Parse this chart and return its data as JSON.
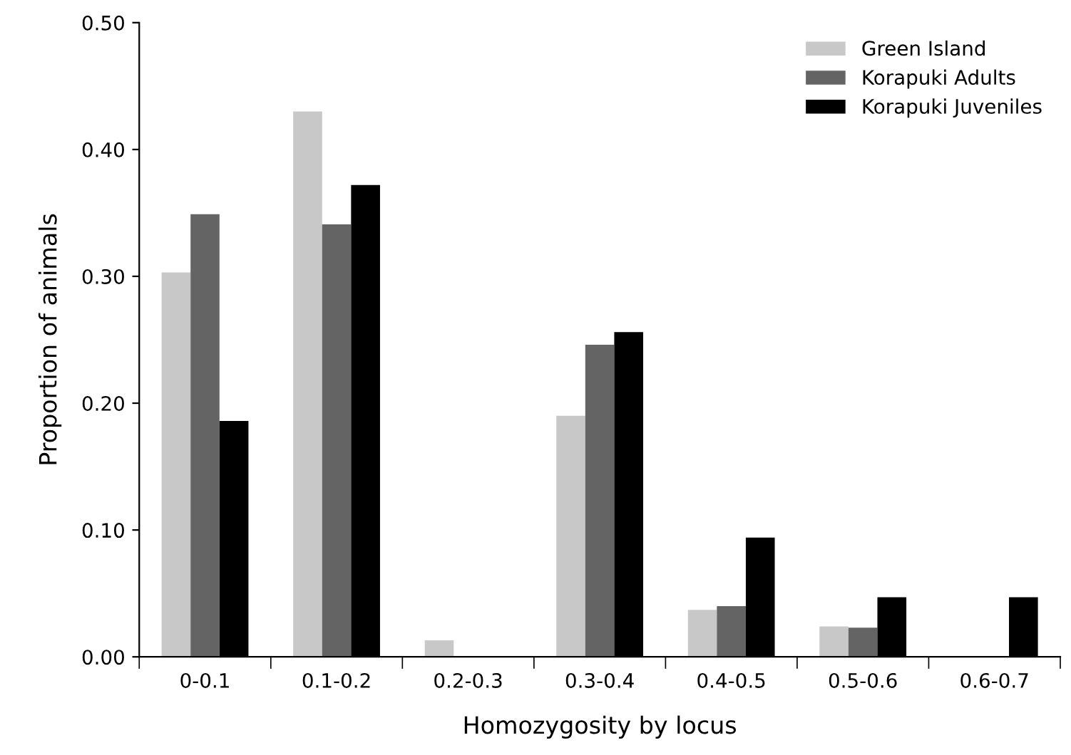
{
  "chart_data": {
    "type": "bar",
    "xlabel": "Homozygosity by locus",
    "ylabel": "Proportion of animals",
    "categories": [
      "0-0.1",
      "0.1-0.2",
      "0.2-0.3",
      "0.3-0.4",
      "0.4-0.5",
      "0.5-0.6",
      "0.6-0.7"
    ],
    "series": [
      {
        "name": "Green Island",
        "color": "#c8c8c8",
        "values": [
          0.303,
          0.43,
          0.013,
          0.19,
          0.037,
          0.024,
          0
        ]
      },
      {
        "name": "Korapuki Adults",
        "color": "#646464",
        "values": [
          0.349,
          0.341,
          0,
          0.246,
          0.04,
          0.023,
          0
        ]
      },
      {
        "name": "Korapuki Juveniles",
        "color": "#000000",
        "values": [
          0.186,
          0.372,
          0,
          0.256,
          0.094,
          0.047,
          0.047
        ]
      }
    ],
    "ylim": [
      0,
      0.5
    ],
    "yticks": [
      {
        "value": 0,
        "label": "0.00"
      },
      {
        "value": 0.1,
        "label": "0.10"
      },
      {
        "value": 0.2,
        "label": "0.20"
      },
      {
        "value": 0.3,
        "label": "0.30"
      },
      {
        "value": 0.4,
        "label": "0.40"
      },
      {
        "value": 0.5,
        "label": "0.50"
      }
    ],
    "grid": false,
    "legend": "top right"
  }
}
